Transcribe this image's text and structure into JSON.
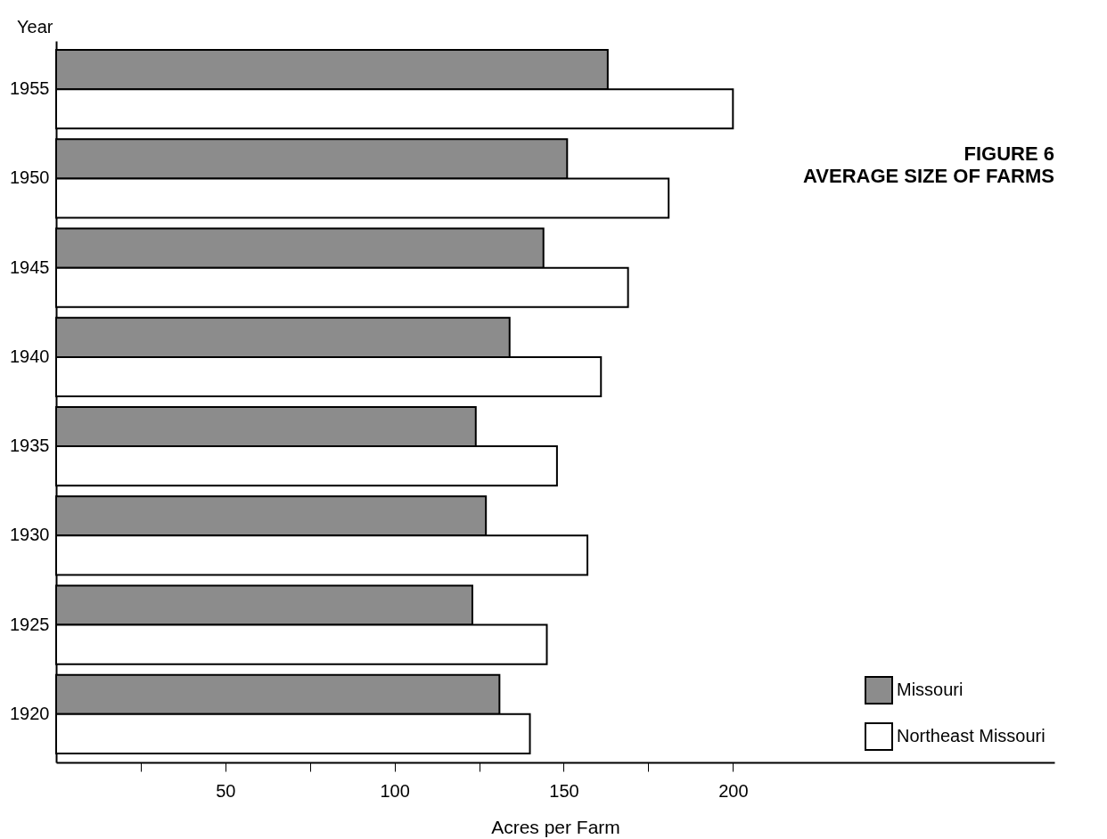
{
  "chart_data": {
    "type": "bar",
    "orientation": "horizontal",
    "title": "FIGURE 6",
    "subtitle": "AVERAGE SIZE OF FARMS",
    "xlabel": "Acres per Farm",
    "ylabel": "Year",
    "categories": [
      "1955",
      "1950",
      "1945",
      "1940",
      "1935",
      "1930",
      "1925",
      "1920"
    ],
    "series": [
      {
        "name": "Missouri",
        "color": "#8c8c8c",
        "values": [
          163,
          151,
          144,
          134,
          124,
          127,
          123,
          131
        ]
      },
      {
        "name": "Northeast Missouri",
        "color": "#ffffff",
        "values": [
          200,
          181,
          169,
          161,
          148,
          157,
          145,
          140
        ]
      }
    ],
    "xlim": [
      0,
      295
    ],
    "xticks": [
      {
        "value": 25,
        "label": null
      },
      50,
      {
        "value": 75,
        "label": null
      },
      100,
      {
        "value": 125,
        "label": null
      },
      150,
      {
        "value": 175,
        "label": null
      },
      200
    ],
    "grid": false,
    "legend": "bottom right"
  }
}
